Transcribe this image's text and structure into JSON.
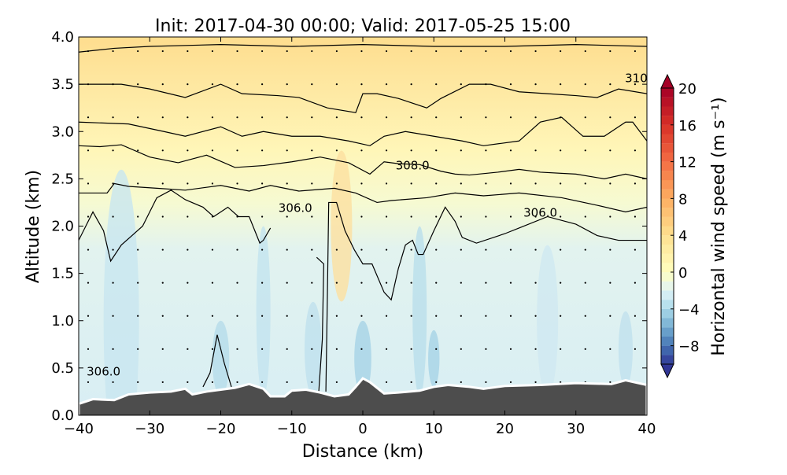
{
  "chart_data": {
    "type": "contour",
    "title": "Init: 2017-04-30 00:00; Valid: 2017-05-25 15:00",
    "xlabel": "Distance (km)",
    "ylabel": "Altitude (km)",
    "xlim": [
      -40,
      40
    ],
    "ylim": [
      0,
      4.0
    ],
    "xticks": [
      "−40",
      "−30",
      "−20",
      "−10",
      "0",
      "10",
      "20",
      "30",
      "40"
    ],
    "xtick_values": [
      -40,
      -30,
      -20,
      -10,
      0,
      10,
      20,
      30,
      40
    ],
    "yticks": [
      "0.0",
      "0.5",
      "1.0",
      "1.5",
      "2.0",
      "2.5",
      "3.0",
      "3.5",
      "4.0"
    ],
    "ytick_values": [
      0,
      0.5,
      1.0,
      1.5,
      2.0,
      2.5,
      3.0,
      3.5,
      4.0
    ],
    "colorbar": {
      "label": "Horizontal wind speed (m s⁻¹)",
      "range": [
        -10,
        20
      ],
      "extend": "both",
      "ticks": [
        "−8",
        "−4",
        "0",
        "4",
        "8",
        "12",
        "16",
        "20"
      ],
      "tick_values": [
        -8,
        -4,
        0,
        4,
        8,
        12,
        16,
        20
      ],
      "colormap_stops": [
        "#313695",
        "#4575b4",
        "#74add1",
        "#abd9e9",
        "#e0f3f8",
        "#ffffbf",
        "#fee090",
        "#fdae61",
        "#f46d43",
        "#d73027",
        "#a50026"
      ]
    },
    "terrain": {
      "color": "#4d4d4d",
      "points": [
        [
          -40,
          0.12
        ],
        [
          -38,
          0.17
        ],
        [
          -35,
          0.16
        ],
        [
          -33,
          0.22
        ],
        [
          -30,
          0.24
        ],
        [
          -27,
          0.25
        ],
        [
          -25,
          0.28
        ],
        [
          -24,
          0.22
        ],
        [
          -22,
          0.25
        ],
        [
          -20,
          0.27
        ],
        [
          -18,
          0.29
        ],
        [
          -16,
          0.33
        ],
        [
          -14,
          0.28
        ],
        [
          -13,
          0.2
        ],
        [
          -11,
          0.2
        ],
        [
          -10,
          0.26
        ],
        [
          -8,
          0.27
        ],
        [
          -6,
          0.24
        ],
        [
          -4,
          0.2
        ],
        [
          -2,
          0.22
        ],
        [
          -1,
          0.3
        ],
        [
          0,
          0.39
        ],
        [
          1,
          0.35
        ],
        [
          3,
          0.23
        ],
        [
          5,
          0.24
        ],
        [
          8,
          0.26
        ],
        [
          10,
          0.3
        ],
        [
          12,
          0.32
        ],
        [
          15,
          0.3
        ],
        [
          17,
          0.28
        ],
        [
          20,
          0.31
        ],
        [
          25,
          0.32
        ],
        [
          30,
          0.34
        ],
        [
          35,
          0.33
        ],
        [
          37,
          0.37
        ],
        [
          40,
          0.32
        ]
      ]
    },
    "theta_contours": [
      {
        "name": "contour-top",
        "points": [
          [
            -40,
            3.84
          ],
          [
            -35,
            3.88
          ],
          [
            -30,
            3.9
          ],
          [
            -20,
            3.92
          ],
          [
            -10,
            3.9
          ],
          [
            0,
            3.92
          ],
          [
            10,
            3.9
          ],
          [
            20,
            3.9
          ],
          [
            30,
            3.92
          ],
          [
            40,
            3.9
          ]
        ]
      },
      {
        "name": "contour-310",
        "points": [
          [
            -40,
            3.5
          ],
          [
            -34,
            3.5
          ],
          [
            -30,
            3.45
          ],
          [
            -25,
            3.36
          ],
          [
            -20,
            3.5
          ],
          [
            -17,
            3.4
          ],
          [
            -12,
            3.38
          ],
          [
            -9,
            3.36
          ],
          [
            -5,
            3.25
          ],
          [
            -1,
            3.2
          ],
          [
            0,
            3.4
          ],
          [
            2,
            3.4
          ],
          [
            5,
            3.35
          ],
          [
            9,
            3.25
          ],
          [
            11,
            3.35
          ],
          [
            15,
            3.5
          ],
          [
            18,
            3.5
          ],
          [
            22,
            3.42
          ],
          [
            26,
            3.4
          ],
          [
            30,
            3.38
          ],
          [
            33,
            3.36
          ],
          [
            36,
            3.45
          ],
          [
            40,
            3.4
          ]
        ]
      },
      {
        "name": "contour-3",
        "points": [
          [
            -40,
            3.1
          ],
          [
            -33,
            3.08
          ],
          [
            -28,
            3.0
          ],
          [
            -25,
            2.95
          ],
          [
            -20,
            3.05
          ],
          [
            -17,
            2.95
          ],
          [
            -14,
            3.0
          ],
          [
            -10,
            2.95
          ],
          [
            -6,
            2.95
          ],
          [
            -2,
            2.9
          ],
          [
            1,
            2.85
          ],
          [
            3,
            2.95
          ],
          [
            6,
            3.0
          ],
          [
            10,
            2.95
          ],
          [
            14,
            2.9
          ],
          [
            17,
            2.85
          ],
          [
            22,
            2.9
          ],
          [
            25,
            3.1
          ],
          [
            28,
            3.15
          ],
          [
            31,
            2.95
          ],
          [
            34,
            2.95
          ],
          [
            37,
            3.1
          ],
          [
            38,
            3.1
          ],
          [
            40,
            2.9
          ]
        ]
      },
      {
        "name": "contour-4",
        "points": [
          [
            -40,
            2.85
          ],
          [
            -37,
            2.84
          ],
          [
            -34,
            2.86
          ],
          [
            -30,
            2.73
          ],
          [
            -26,
            2.67
          ],
          [
            -22,
            2.75
          ],
          [
            -18,
            2.62
          ],
          [
            -14,
            2.64
          ],
          [
            -10,
            2.68
          ],
          [
            -6,
            2.73
          ],
          [
            -2,
            2.67
          ],
          [
            1,
            2.55
          ],
          [
            3,
            2.68
          ],
          [
            5,
            2.66
          ],
          [
            8,
            2.65
          ],
          [
            11,
            2.58
          ],
          [
            13,
            2.55
          ],
          [
            15,
            2.54
          ],
          [
            19,
            2.57
          ],
          [
            22,
            2.6
          ],
          [
            25,
            2.57
          ],
          [
            30,
            2.55
          ],
          [
            34,
            2.5
          ],
          [
            37,
            2.55
          ],
          [
            40,
            2.5
          ]
        ]
      },
      {
        "name": "contour-308",
        "points": [
          [
            -40,
            2.35
          ],
          [
            -36,
            2.35
          ],
          [
            -35,
            2.45
          ],
          [
            -33,
            2.42
          ],
          [
            -29,
            2.4
          ],
          [
            -25,
            2.38
          ],
          [
            -20,
            2.43
          ],
          [
            -16,
            2.37
          ],
          [
            -13,
            2.43
          ],
          [
            -9,
            2.37
          ],
          [
            -4,
            2.4
          ],
          [
            -1,
            2.35
          ],
          [
            2,
            2.25
          ],
          [
            4,
            2.27
          ],
          [
            9,
            2.3
          ],
          [
            13,
            2.35
          ],
          [
            17,
            2.32
          ],
          [
            22,
            2.35
          ],
          [
            28,
            2.3
          ],
          [
            33,
            2.22
          ],
          [
            37,
            2.15
          ],
          [
            40,
            2.2
          ]
        ]
      },
      {
        "name": "contour-306-left",
        "points": [
          [
            -40,
            1.85
          ],
          [
            -38,
            2.15
          ],
          [
            -36.5,
            1.95
          ],
          [
            -35.5,
            1.63
          ],
          [
            -34,
            1.8
          ],
          [
            -32.5,
            1.9
          ],
          [
            -31,
            2.0
          ],
          [
            -29,
            2.3
          ],
          [
            -27,
            2.38
          ],
          [
            -25,
            2.28
          ],
          [
            -22.5,
            2.2
          ],
          [
            -21,
            2.1
          ],
          [
            -19,
            2.2
          ],
          [
            -17.5,
            2.1
          ],
          [
            -16,
            2.1
          ],
          [
            -14.5,
            1.82
          ],
          [
            -14,
            1.85
          ],
          [
            -13,
            1.98
          ]
        ]
      },
      {
        "name": "contour-306-center",
        "points": [
          [
            -6.5,
            1.67
          ],
          [
            -5.5,
            1.6
          ],
          [
            -5.7,
            0.8
          ],
          [
            -6.2,
            0.25
          ]
        ]
      },
      {
        "name": "contour-306-right",
        "points": [
          [
            -5.2,
            0.25
          ],
          [
            -5.0,
            1.2
          ],
          [
            -4.8,
            2.25
          ],
          [
            -3.7,
            2.25
          ],
          [
            -2.5,
            1.95
          ],
          [
            -1.2,
            1.75
          ],
          [
            0,
            1.6
          ],
          [
            1.3,
            1.6
          ],
          [
            3,
            1.3
          ],
          [
            4,
            1.22
          ],
          [
            5,
            1.55
          ],
          [
            6,
            1.8
          ],
          [
            7,
            1.85
          ],
          [
            7.8,
            1.7
          ],
          [
            8.5,
            1.7
          ],
          [
            10,
            1.95
          ],
          [
            11.6,
            2.2
          ],
          [
            13,
            2.05
          ],
          [
            14,
            1.88
          ],
          [
            16,
            1.82
          ],
          [
            20,
            1.92
          ],
          [
            22,
            1.98
          ],
          [
            26,
            2.1
          ],
          [
            30,
            2.02
          ],
          [
            33,
            1.9
          ],
          [
            36,
            1.85
          ],
          [
            40,
            1.85
          ]
        ]
      },
      {
        "name": "contour-306-hill",
        "points": [
          [
            -22.5,
            0.3
          ],
          [
            -21.5,
            0.45
          ],
          [
            -20.5,
            0.85
          ],
          [
            -19.5,
            0.55
          ],
          [
            -18.5,
            0.3
          ]
        ]
      }
    ],
    "contour_labels": [
      {
        "text": "310",
        "x": 38.5,
        "y": 3.52
      },
      {
        "text": "308.0",
        "x": 7,
        "y": 2.6
      },
      {
        "text": "306.0",
        "x": -9.5,
        "y": 2.15
      },
      {
        "text": "306.0",
        "x": 25,
        "y": 2.1
      },
      {
        "text": "306.0",
        "x": -36.5,
        "y": 0.42
      }
    ]
  }
}
